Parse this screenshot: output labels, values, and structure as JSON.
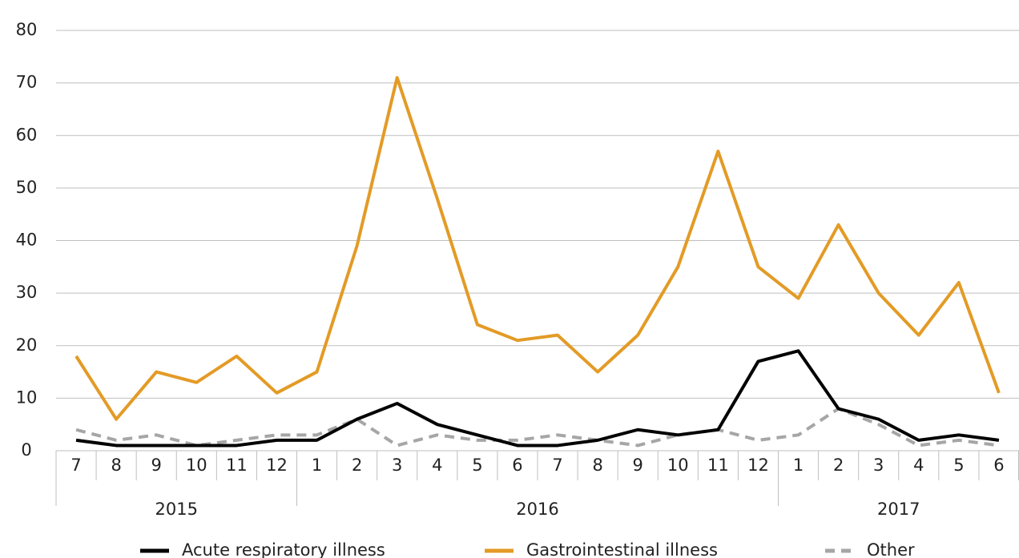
{
  "chart_data": {
    "type": "line",
    "categories": [
      "7",
      "8",
      "9",
      "10",
      "11",
      "12",
      "1",
      "2",
      "3",
      "4",
      "5",
      "6",
      "7",
      "8",
      "9",
      "10",
      "11",
      "12",
      "1",
      "2",
      "3",
      "4",
      "5",
      "6"
    ],
    "year_groups": [
      {
        "label": "2015",
        "count": 6
      },
      {
        "label": "2016",
        "count": 12
      },
      {
        "label": "2017",
        "count": 6
      }
    ],
    "series": [
      {
        "name": "Acute respiratory illness",
        "color": "#000000",
        "dashed": false,
        "values": [
          2,
          1,
          1,
          1,
          1,
          2,
          2,
          6,
          9,
          5,
          3,
          1,
          1,
          2,
          4,
          3,
          4,
          17,
          19,
          8,
          6,
          2,
          3,
          2
        ]
      },
      {
        "name": "Gastrointestinal illness",
        "color": "#e39b26",
        "dashed": false,
        "values": [
          18,
          6,
          15,
          13,
          18,
          11,
          15,
          39,
          71,
          48,
          24,
          21,
          22,
          15,
          22,
          35,
          57,
          35,
          29,
          43,
          30,
          22,
          32,
          11
        ]
      },
      {
        "name": "Other",
        "color": "#a6a6a6",
        "dashed": true,
        "values": [
          4,
          2,
          3,
          1,
          2,
          3,
          3,
          6,
          1,
          3,
          2,
          2,
          3,
          2,
          1,
          3,
          4,
          2,
          3,
          8,
          5,
          1,
          2,
          1
        ]
      }
    ],
    "ylim": [
      0,
      80
    ],
    "yticks": [
      0,
      10,
      20,
      30,
      40,
      50,
      60,
      70,
      80
    ],
    "grid": true,
    "legend": "bottom"
  }
}
